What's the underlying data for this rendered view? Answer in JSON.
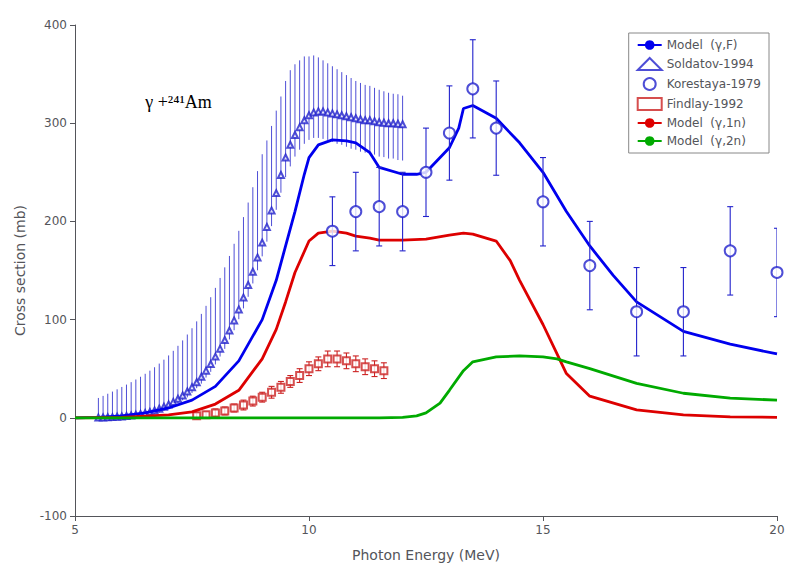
{
  "chart_data": {
    "type": "line",
    "xlabel": "Photon Energy (MeV)",
    "ylabel": "Cross section (mb)",
    "xlim": [
      5,
      20
    ],
    "ylim": [
      -100,
      400
    ],
    "xticks": [
      5,
      10,
      15,
      20
    ],
    "yticks": [
      -100,
      0,
      100,
      200,
      300,
      400
    ],
    "grid": false,
    "legend": "upper right",
    "annotation": "γ +²⁴¹Am",
    "series": [
      {
        "name": "Model  (γ,F)",
        "type": "line",
        "line_style": "solid",
        "color": "#0000ee",
        "x": [
          5.0,
          5.5,
          6.0,
          6.5,
          7.0,
          7.5,
          8.0,
          8.5,
          9.0,
          9.3,
          9.5,
          9.7,
          9.9,
          10.0,
          10.2,
          10.5,
          10.8,
          11.0,
          11.3,
          11.5,
          12.0,
          12.3,
          12.5,
          13.0,
          13.2,
          13.3,
          13.5,
          14.0,
          14.5,
          15.0,
          15.5,
          16.0,
          16.5,
          17.0,
          18.0,
          19.0,
          20.0
        ],
        "values": [
          0,
          0.5,
          2,
          5,
          10,
          18,
          32,
          58,
          100,
          140,
          175,
          210,
          248,
          265,
          278,
          283,
          282,
          280,
          270,
          255,
          248,
          248,
          250,
          275,
          295,
          315,
          318,
          305,
          280,
          250,
          210,
          175,
          145,
          118,
          88,
          75,
          65
        ]
      },
      {
        "name": "Soldatov-1994",
        "type": "scatter",
        "marker": "triangle",
        "color": "#2222cc",
        "x": [
          5.5,
          5.6,
          5.7,
          5.8,
          5.9,
          6.0,
          6.1,
          6.2,
          6.3,
          6.4,
          6.5,
          6.6,
          6.7,
          6.8,
          6.9,
          7.0,
          7.1,
          7.2,
          7.3,
          7.4,
          7.5,
          7.6,
          7.7,
          7.8,
          7.9,
          8.0,
          8.1,
          8.2,
          8.3,
          8.4,
          8.5,
          8.6,
          8.7,
          8.8,
          8.9,
          9.0,
          9.1,
          9.2,
          9.3,
          9.4,
          9.5,
          9.6,
          9.7,
          9.8,
          9.9,
          10.0,
          10.1,
          10.2,
          10.3,
          10.4,
          10.5,
          10.6,
          10.7,
          10.8,
          10.9,
          11.0,
          11.1,
          11.2,
          11.3,
          11.4,
          11.5,
          11.6,
          11.7,
          11.8,
          11.9,
          12.0
        ],
        "values": [
          0.2,
          0.3,
          0.5,
          0.7,
          1.0,
          1.4,
          1.8,
          2.3,
          3.0,
          3.8,
          4.8,
          6.0,
          7.5,
          9.2,
          11.2,
          13.5,
          16.2,
          19.3,
          22.8,
          26.8,
          31.2,
          36.2,
          41.8,
          48.0,
          54.8,
          62.3,
          70.4,
          79.2,
          88.8,
          99.2,
          110.4,
          122.4,
          135.2,
          148.8,
          163.2,
          178.4,
          194.4,
          211.2,
          228.8,
          247.2,
          265.0,
          278.0,
          288.0,
          296.0,
          303.0,
          308.0,
          311.0,
          312.0,
          312.0,
          311.0,
          310.0,
          309.0,
          308.0,
          307.0,
          306.0,
          305.0,
          304.0,
          303.0,
          303.0,
          302.0,
          301.0,
          300.5,
          300.0,
          300.0,
          299.5,
          299.0
        ],
        "yerr_minus": [
          3,
          3,
          3,
          3,
          3,
          3,
          3,
          3,
          3,
          3,
          3,
          4,
          4,
          4,
          4,
          5,
          5,
          5,
          5,
          6,
          6,
          6,
          7,
          7,
          8,
          8,
          8,
          9,
          9,
          10,
          10,
          11,
          12,
          12,
          13,
          14,
          15,
          16,
          17,
          18,
          20,
          22,
          22,
          23,
          24,
          25,
          26,
          27,
          28,
          28,
          29,
          30,
          30,
          31,
          32,
          32,
          33,
          33,
          34,
          34,
          35,
          35,
          36,
          36,
          37,
          37
        ],
        "yerr_plus": [
          20,
          22,
          24,
          26,
          28,
          30,
          32,
          34,
          36,
          38,
          40,
          42,
          44,
          46,
          48,
          50,
          52,
          54,
          56,
          58,
          60,
          62,
          64,
          66,
          68,
          70,
          72,
          74,
          76,
          78,
          80,
          82,
          84,
          86,
          88,
          90,
          88,
          86,
          84,
          80,
          78,
          76,
          72,
          68,
          65,
          60,
          58,
          55,
          52,
          50,
          48,
          46,
          44,
          42,
          40,
          38,
          37,
          36,
          35,
          34,
          33,
          32,
          31,
          30,
          30,
          29
        ]
      },
      {
        "name": "Korestaya-1979",
        "type": "scatter",
        "marker": "circle",
        "color": "#2222cc",
        "x": [
          10.5,
          11.0,
          11.5,
          12.0,
          12.5,
          13.0,
          13.5,
          14.0,
          15.0,
          16.0,
          17.0,
          18.0,
          19.0,
          20.0
        ],
        "values": [
          190,
          210,
          215,
          210,
          250,
          290,
          335,
          295,
          220,
          155,
          108,
          108,
          170,
          148
        ],
        "yerr": [
          35,
          40,
          40,
          40,
          45,
          48,
          50,
          48,
          45,
          45,
          45,
          45,
          45,
          45
        ]
      },
      {
        "name": "Findlay-1992",
        "type": "scatter",
        "marker": "square",
        "color": "#cc2222",
        "x": [
          7.6,
          7.8,
          8.0,
          8.2,
          8.4,
          8.6,
          8.8,
          9.0,
          9.2,
          9.4,
          9.6,
          9.8,
          10.0,
          10.2,
          10.4,
          10.6,
          10.8,
          11.0,
          11.2,
          11.4,
          11.6
        ],
        "values": [
          2,
          3,
          5,
          7,
          10,
          13,
          17,
          21,
          26,
          31,
          37,
          43,
          50,
          55,
          60,
          60,
          58,
          55,
          52,
          50,
          48
        ],
        "yerr": [
          3,
          3,
          4,
          4,
          4,
          5,
          5,
          5,
          6,
          6,
          6,
          7,
          7,
          7,
          8,
          8,
          8,
          8,
          8,
          8,
          8
        ]
      },
      {
        "name": "Model  (γ,1n)",
        "type": "line",
        "line_style": "solid",
        "color": "#dd0000",
        "x": [
          5.0,
          6.0,
          7.0,
          7.5,
          8.0,
          8.5,
          9.0,
          9.3,
          9.5,
          9.7,
          10.0,
          10.2,
          10.5,
          10.8,
          11.0,
          11.3,
          11.5,
          12.0,
          12.5,
          13.0,
          13.3,
          13.5,
          14.0,
          14.3,
          14.5,
          15.0,
          15.3,
          15.5,
          16.0,
          17.0,
          18.0,
          19.0,
          20.0
        ],
        "values": [
          0,
          0.5,
          3,
          6,
          14,
          28,
          60,
          90,
          118,
          148,
          180,
          188,
          190,
          188,
          185,
          183,
          181,
          181,
          182,
          186,
          188,
          187,
          180,
          160,
          140,
          95,
          65,
          45,
          22,
          8,
          3,
          1,
          0.5
        ]
      },
      {
        "name": "Model  (γ,2n)",
        "type": "line",
        "line_style": "solid",
        "color": "#00aa00",
        "x": [
          5.0,
          11.5,
          12.0,
          12.3,
          12.5,
          12.8,
          13.0,
          13.3,
          13.5,
          14.0,
          14.5,
          15.0,
          15.3,
          15.5,
          16.0,
          17.0,
          18.0,
          19.0,
          20.0
        ],
        "values": [
          0,
          0,
          0.5,
          2,
          5,
          15,
          28,
          48,
          57,
          62,
          63,
          62,
          60,
          57,
          50,
          35,
          25,
          20,
          18
        ]
      }
    ]
  }
}
